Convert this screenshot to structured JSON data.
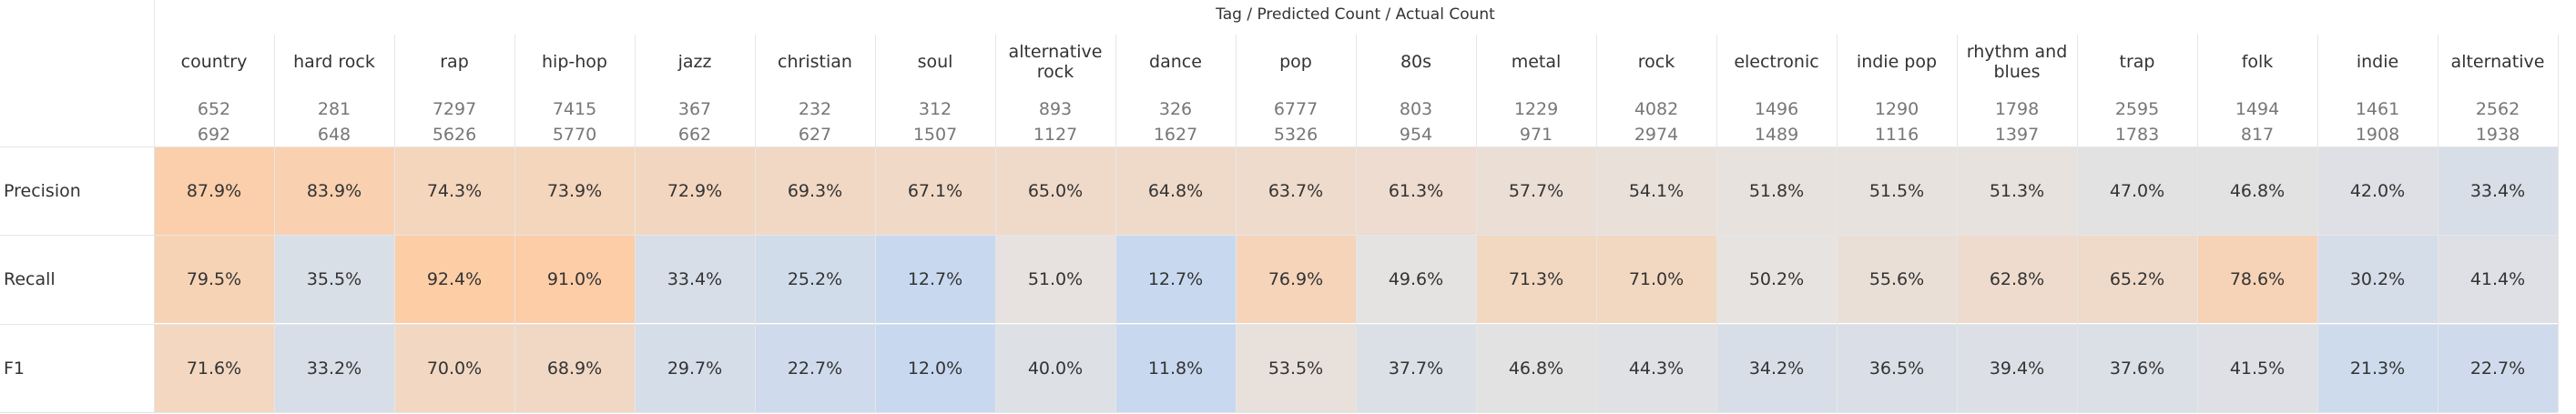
{
  "header_title": "Tag / Predicted Count / Actual Count",
  "colors": {
    "orange_strong": "#fdcda6",
    "blue_strong": "#c6d8f0",
    "neutral": "#e6e3e1"
  },
  "chart_data": {
    "type": "table",
    "columns": [
      {
        "tag": "country",
        "predicted": "652",
        "actual": "692"
      },
      {
        "tag": "hard rock",
        "predicted": "281",
        "actual": "648"
      },
      {
        "tag": "rap",
        "predicted": "7297",
        "actual": "5626"
      },
      {
        "tag": "hip-hop",
        "predicted": "7415",
        "actual": "5770"
      },
      {
        "tag": "jazz",
        "predicted": "367",
        "actual": "662"
      },
      {
        "tag": "christian",
        "predicted": "232",
        "actual": "627"
      },
      {
        "tag": "soul",
        "predicted": "312",
        "actual": "1507"
      },
      {
        "tag": "alternative rock",
        "predicted": "893",
        "actual": "1127"
      },
      {
        "tag": "dance",
        "predicted": "326",
        "actual": "1627"
      },
      {
        "tag": "pop",
        "predicted": "6777",
        "actual": "5326"
      },
      {
        "tag": "80s",
        "predicted": "803",
        "actual": "954"
      },
      {
        "tag": "metal",
        "predicted": "1229",
        "actual": "971"
      },
      {
        "tag": "rock",
        "predicted": "4082",
        "actual": "2974"
      },
      {
        "tag": "electronic",
        "predicted": "1496",
        "actual": "1489"
      },
      {
        "tag": "indie pop",
        "predicted": "1290",
        "actual": "1116"
      },
      {
        "tag": "rhythm and blues",
        "predicted": "1798",
        "actual": "1397"
      },
      {
        "tag": "trap",
        "predicted": "2595",
        "actual": "1783"
      },
      {
        "tag": "folk",
        "predicted": "1494",
        "actual": "817"
      },
      {
        "tag": "indie",
        "predicted": "1461",
        "actual": "1908"
      },
      {
        "tag": "alternative",
        "predicted": "2562",
        "actual": "1938"
      }
    ],
    "rows": [
      {
        "label": "Precision",
        "values": [
          87.9,
          83.9,
          74.3,
          73.9,
          72.9,
          69.3,
          67.1,
          65.0,
          64.8,
          63.7,
          61.3,
          57.7,
          54.1,
          51.8,
          51.5,
          51.3,
          47.0,
          46.8,
          42.0,
          33.4
        ]
      },
      {
        "label": "Recall",
        "values": [
          79.5,
          35.5,
          92.4,
          91.0,
          33.4,
          25.2,
          12.7,
          51.0,
          12.7,
          76.9,
          49.6,
          71.3,
          71.0,
          50.2,
          55.6,
          62.8,
          65.2,
          78.6,
          30.2,
          41.4
        ]
      },
      {
        "label": "F1",
        "values": [
          71.6,
          33.2,
          70.0,
          68.9,
          29.7,
          22.7,
          12.0,
          40.0,
          11.8,
          53.5,
          37.7,
          46.8,
          44.3,
          34.2,
          36.5,
          39.4,
          37.6,
          41.5,
          21.3,
          22.7
        ]
      }
    ],
    "value_format": "percent_1dp",
    "color_scale": {
      "low": 10,
      "mid": 50,
      "high": 92
    }
  }
}
